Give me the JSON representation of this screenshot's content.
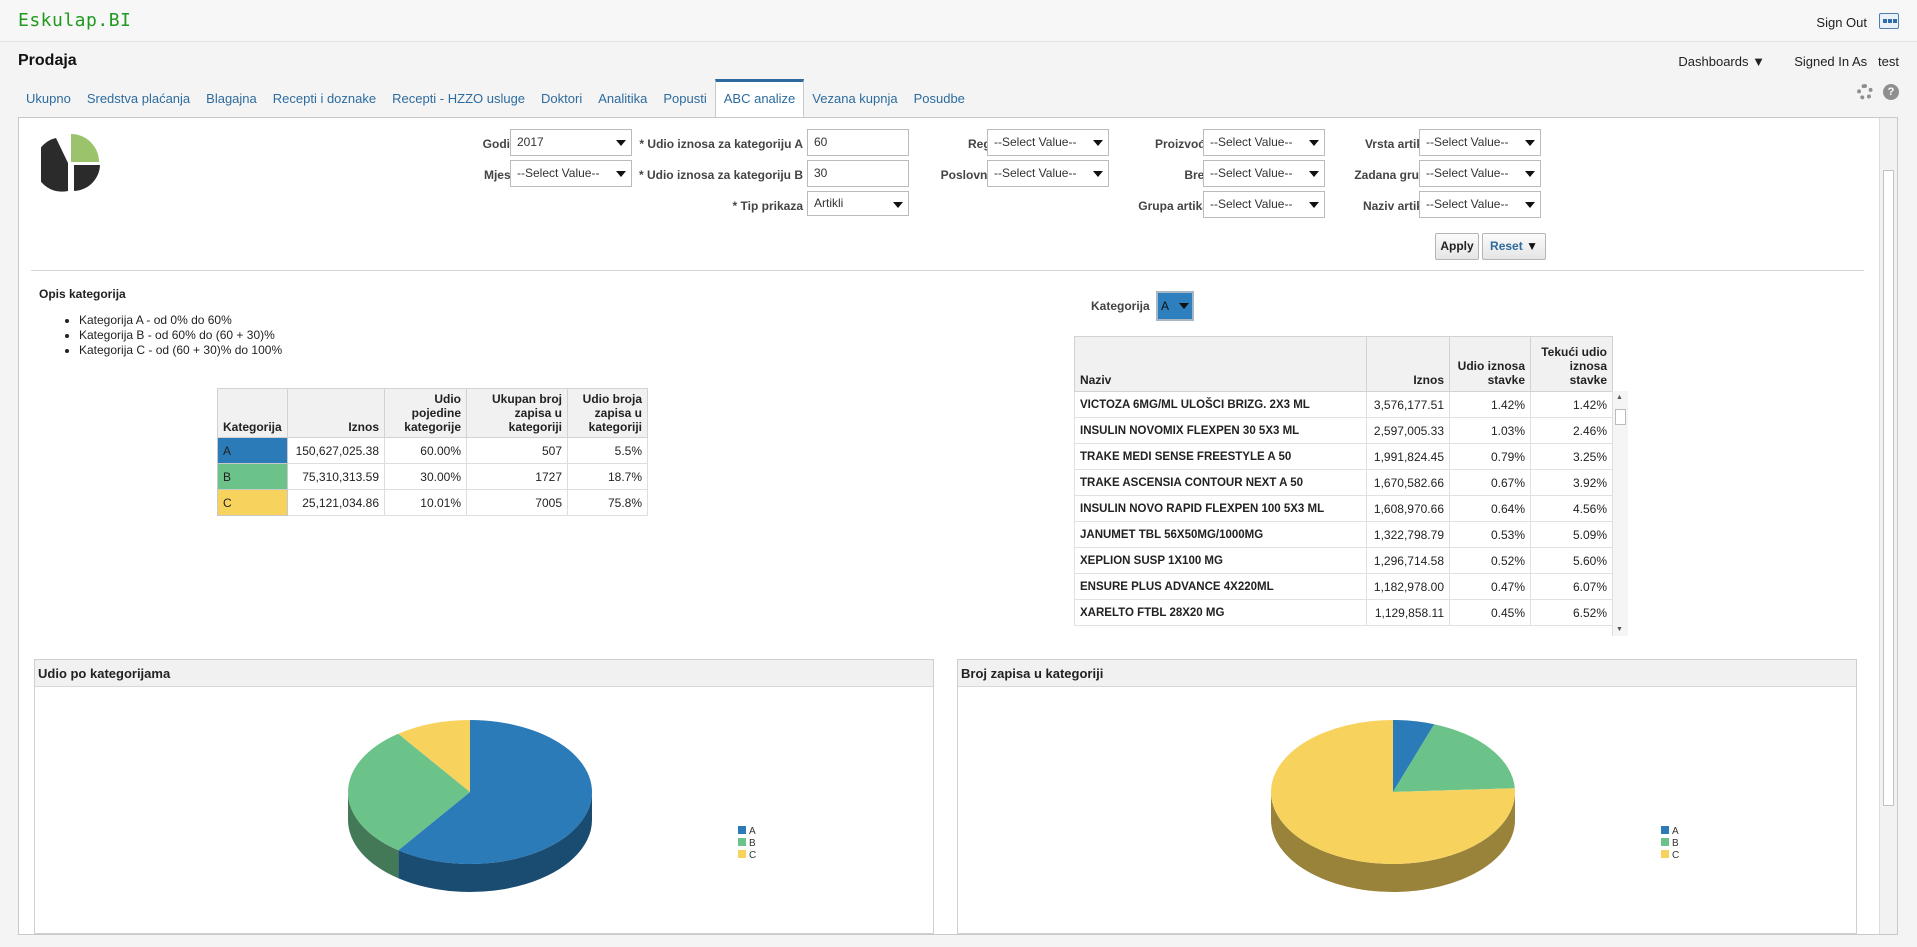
{
  "app": {
    "brand": "Eskulap.BI",
    "sign_out": "Sign Out"
  },
  "header": {
    "page_title": "Prodaja",
    "dashboards_label": "Dashboards",
    "signed_in_label": "Signed In As",
    "signed_in_user": "test"
  },
  "tabs": [
    {
      "label": "Ukupno"
    },
    {
      "label": "Sredstva plaćanja"
    },
    {
      "label": "Blagajna"
    },
    {
      "label": "Recepti i doznake"
    },
    {
      "label": "Recepti - HZZO usluge"
    },
    {
      "label": "Doktori"
    },
    {
      "label": "Analitika"
    },
    {
      "label": "Popusti"
    },
    {
      "label": "ABC analize",
      "active": true
    },
    {
      "label": "Vezana kupnja"
    },
    {
      "label": "Posudbe"
    }
  ],
  "prompts": {
    "godina": {
      "label": "Godina",
      "value": "2017"
    },
    "mjesec": {
      "label": "Mjesec",
      "value": "--Select Value--"
    },
    "udio_a": {
      "label": "* Udio iznosa za kategoriju A",
      "value": "60"
    },
    "udio_b": {
      "label": "* Udio iznosa za kategoriju B",
      "value": "30"
    },
    "tip_prikaza": {
      "label": "* Tip prikaza",
      "value": "Artikli"
    },
    "regija": {
      "label": "Regija",
      "value": "--Select Value--"
    },
    "poslovnica": {
      "label": "Poslovnica",
      "value": "--Select Value--"
    },
    "proizvodac": {
      "label": "Proizvođač",
      "value": "--Select Value--"
    },
    "brend": {
      "label": "Brend",
      "value": "--Select Value--"
    },
    "grupa_artikala": {
      "label": "Grupa artikala",
      "value": "--Select Value--"
    },
    "vrsta_artikla": {
      "label": "Vrsta artikla",
      "value": "--Select Value--"
    },
    "zadana_grupa": {
      "label": "Zadana grupa",
      "value": "--Select Value--"
    },
    "naziv_artikla": {
      "label": "Naziv artikla",
      "value": "--Select Value--"
    },
    "apply": "Apply",
    "reset": "Reset"
  },
  "opis": {
    "title": "Opis kategorija",
    "items": [
      "Kategorija A - od 0% do 60%",
      "Kategorija B - od 60% do (60 + 30)%",
      "Kategorija C - od (60 + 30)% do 100%"
    ]
  },
  "category_table": {
    "headers": [
      "Kategorija",
      "Iznos",
      "Udio pojedine kategorije",
      "Ukupan broj zapisa u kategoriji",
      "Udio broja zapisa u kategoriji"
    ],
    "rows": [
      {
        "kat": "A",
        "iznos": "150,627,025.38",
        "udio": "60.00%",
        "broj": "507",
        "udio_broja": "5.5%"
      },
      {
        "kat": "B",
        "iznos": "75,310,313.59",
        "udio": "30.00%",
        "broj": "1727",
        "udio_broja": "18.7%"
      },
      {
        "kat": "C",
        "iznos": "25,121,034.86",
        "udio": "10.01%",
        "broj": "7005",
        "udio_broja": "75.8%"
      }
    ]
  },
  "kategorija_filter": {
    "label": "Kategorija",
    "value": "A"
  },
  "item_table": {
    "headers": [
      "Naziv",
      "Iznos",
      "Udio iznosa stavke",
      "Tekući udio iznosa stavke"
    ],
    "rows": [
      {
        "naziv": "VICTOZA 6MG/ML ULOŠCI BRIZG. 2X3 ML",
        "iznos": "3,576,177.51",
        "udio": "1.42%",
        "tekuci": "1.42%"
      },
      {
        "naziv": "INSULIN NOVOMIX FLEXPEN 30 5X3 ML",
        "iznos": "2,597,005.33",
        "udio": "1.03%",
        "tekuci": "2.46%"
      },
      {
        "naziv": "TRAKE MEDI SENSE FREESTYLE A 50",
        "iznos": "1,991,824.45",
        "udio": "0.79%",
        "tekuci": "3.25%"
      },
      {
        "naziv": "TRAKE ASCENSIA CONTOUR NEXT A 50",
        "iznos": "1,670,582.66",
        "udio": "0.67%",
        "tekuci": "3.92%"
      },
      {
        "naziv": "INSULIN NOVO RAPID FLEXPEN 100 5X3 ML",
        "iznos": "1,608,970.66",
        "udio": "0.64%",
        "tekuci": "4.56%"
      },
      {
        "naziv": "JANUMET TBL 56X50MG/1000MG",
        "iznos": "1,322,798.79",
        "udio": "0.53%",
        "tekuci": "5.09%"
      },
      {
        "naziv": "XEPLION SUSP 1X100 MG",
        "iznos": "1,296,714.58",
        "udio": "0.52%",
        "tekuci": "5.60%"
      },
      {
        "naziv": "ENSURE PLUS ADVANCE 4X220ML",
        "iznos": "1,182,978.00",
        "udio": "0.47%",
        "tekuci": "6.07%"
      },
      {
        "naziv": "XARELTO FTBL 28X20 MG",
        "iznos": "1,129,858.11",
        "udio": "0.45%",
        "tekuci": "6.52%"
      }
    ]
  },
  "colors": {
    "A": "#2a7bb8",
    "B": "#6cc38a",
    "C": "#f7d35e"
  },
  "chart_data": [
    {
      "type": "pie",
      "title": "Udio po kategorijama",
      "categories": [
        "A",
        "B",
        "C"
      ],
      "values": [
        60.0,
        30.0,
        10.01
      ]
    },
    {
      "type": "pie",
      "title": "Broj zapisa u kategoriji",
      "categories": [
        "A",
        "B",
        "C"
      ],
      "values": [
        507,
        1727,
        7005
      ]
    }
  ]
}
